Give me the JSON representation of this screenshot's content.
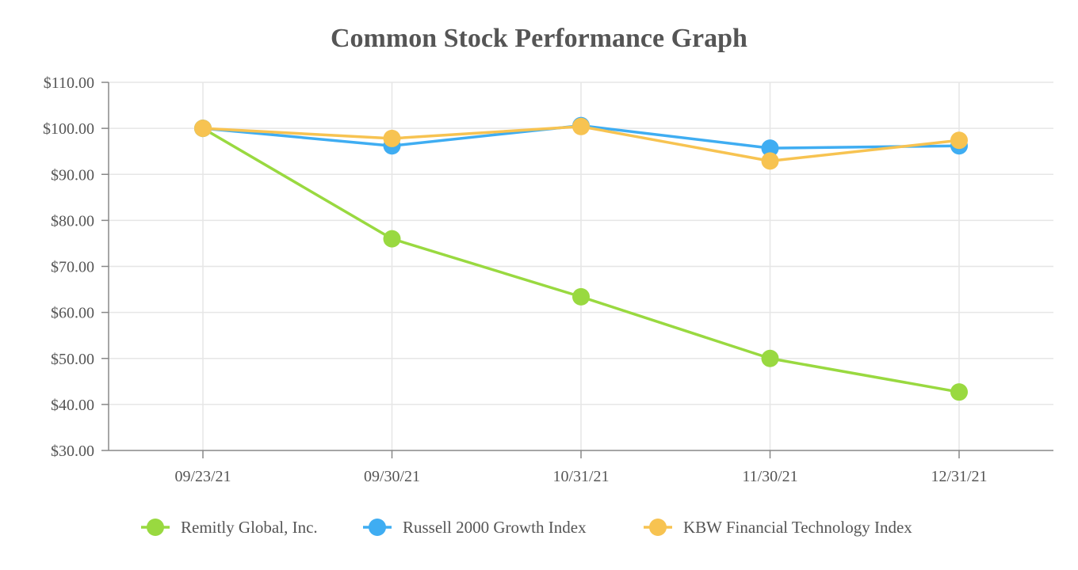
{
  "chart_data": {
    "type": "line",
    "title": "Common Stock Performance Graph",
    "xlabel": "",
    "ylabel": "",
    "categories": [
      "09/23/21",
      "09/30/21",
      "10/31/21",
      "11/30/21",
      "12/31/21"
    ],
    "ylim": [
      30,
      110
    ],
    "yticks": [
      30,
      40,
      50,
      60,
      70,
      80,
      90,
      100,
      110
    ],
    "ytick_labels": [
      "$30.00",
      "$40.00",
      "$50.00",
      "$60.00",
      "$70.00",
      "$80.00",
      "$90.00",
      "$100.00",
      "$110.00"
    ],
    "grid": true,
    "legend_position": "bottom",
    "series": [
      {
        "name": "Remitly Global, Inc.",
        "color": "#99d940",
        "values": [
          100.0,
          76.0,
          63.4,
          50.0,
          42.7
        ]
      },
      {
        "name": "Russell 2000 Growth Index",
        "color": "#3fadf2",
        "values": [
          100.0,
          96.2,
          100.6,
          95.7,
          96.2
        ]
      },
      {
        "name": "KBW Financial Technology Index",
        "color": "#f7c351",
        "values": [
          100.0,
          97.8,
          100.4,
          92.9,
          97.4
        ]
      }
    ]
  }
}
